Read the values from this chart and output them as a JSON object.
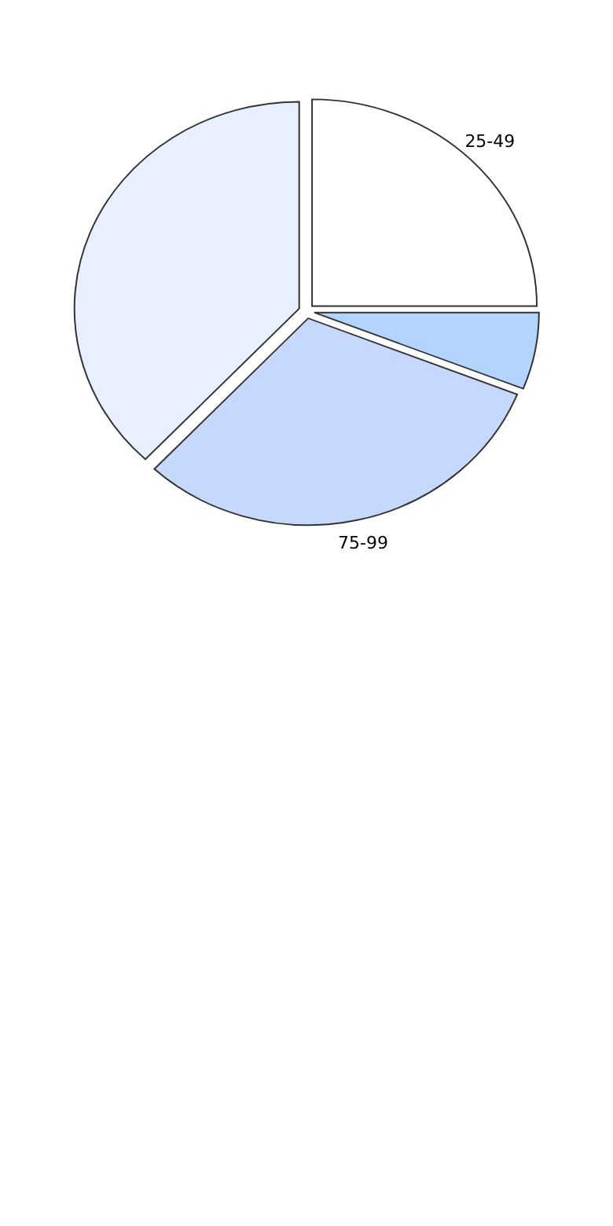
{
  "chart_data": {
    "type": "pie",
    "categories": [
      "25-49",
      null,
      "75-99",
      null
    ],
    "values": [
      25,
      6,
      31,
      38
    ],
    "colors": [
      "#ffffff",
      "#b3d4fc",
      "#c6d9fd",
      "#e8f0fe"
    ]
  }
}
